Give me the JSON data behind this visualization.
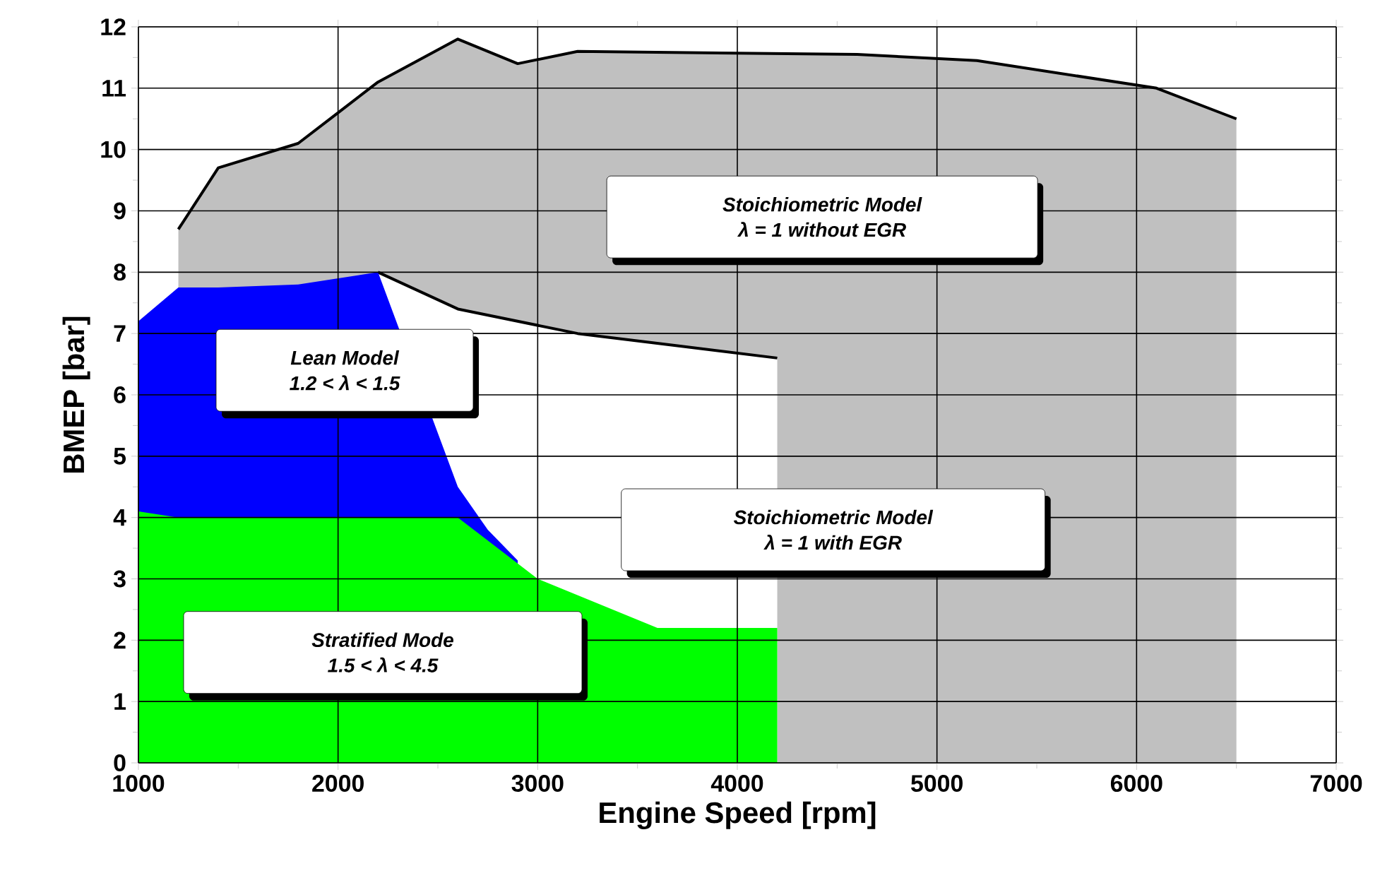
{
  "chart_data": {
    "type": "area",
    "xlabel": "Engine Speed [rpm]",
    "ylabel": "BMEP [bar]",
    "xlim": [
      1000,
      7000
    ],
    "xticks": [
      1000,
      2000,
      3000,
      4000,
      5000,
      6000,
      7000
    ],
    "ylim": [
      0,
      12
    ],
    "yticks": [
      0,
      1,
      2,
      3,
      4,
      5,
      6,
      7,
      8,
      9,
      10,
      11,
      12
    ],
    "grid": true,
    "series": [
      {
        "color": "#c0c0c0",
        "line_style": "solid",
        "x": [
          1200,
          1400,
          1800,
          2000,
          2200,
          2600,
          2900,
          3200,
          4600,
          5200,
          6100,
          6500
        ],
        "values": [
          8.7,
          9.7,
          10.1,
          10.6,
          11.1,
          11.8,
          11.4,
          11.6,
          11.55,
          11.45,
          11.0,
          10.5
        ]
      },
      {
        "color": "#ffffff",
        "line_style": "solid",
        "x": [
          2200,
          2600,
          3200,
          3700,
          4200
        ],
        "values": [
          8.0,
          7.4,
          7.0,
          6.8,
          6.6
        ]
      },
      {
        "color": "#0000ff",
        "x": [
          1000,
          1200,
          1400,
          1800,
          2200,
          2600,
          2750,
          2900
        ],
        "values": [
          7.2,
          7.75,
          7.75,
          7.8,
          8.0,
          4.5,
          3.8,
          3.3
        ]
      },
      {
        "color": "#00ff00",
        "x": [
          1000,
          1200,
          2600,
          3000,
          3600,
          4200
        ],
        "values": [
          4.1,
          4.0,
          4.0,
          3.0,
          2.2,
          2.2
        ]
      }
    ],
    "annotations": [
      "Stoichiometric Model",
      "λ = 1 without EGR",
      "Lean Model",
      "1.2 < λ < 1.5",
      "Stoichiometric Model",
      "λ = 1 with EGR",
      "Stratified Mode",
      "1.5 < λ < 4.5"
    ]
  }
}
